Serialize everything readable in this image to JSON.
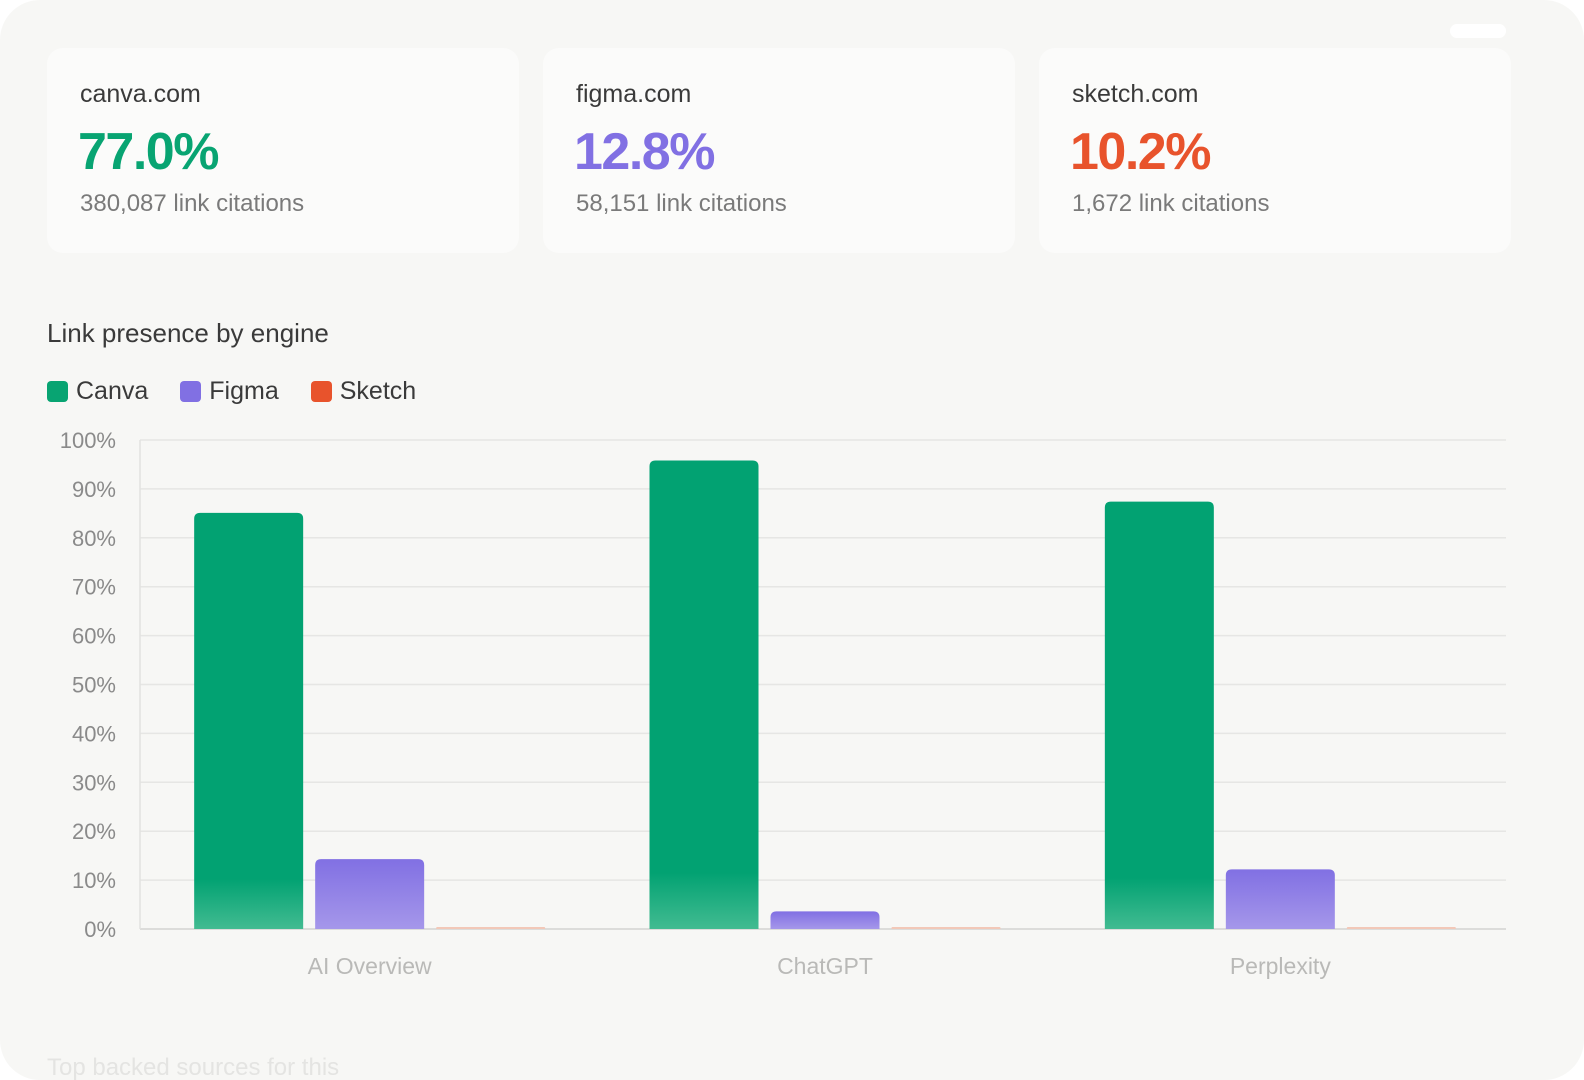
{
  "cards": [
    {
      "domain": "canva.com",
      "percent": "77.0%",
      "citations": "380,087 link citations",
      "color": "#08a472"
    },
    {
      "domain": "figma.com",
      "percent": "12.8%",
      "citations": "58,151 link citations",
      "color": "#8170e3"
    },
    {
      "domain": "sketch.com",
      "percent": "10.2%",
      "citations": "1,672 link citations",
      "color": "#e8532c"
    }
  ],
  "chart_title": "Link presence by engine",
  "legend": [
    {
      "label": "Canva",
      "color": "#08a472"
    },
    {
      "label": "Figma",
      "color": "#8170e3"
    },
    {
      "label": "Sketch",
      "color": "#e8532c"
    }
  ],
  "faded_heading": "Top backed sources for this",
  "chart_data": {
    "type": "bar",
    "title": "Link presence by engine",
    "categories": [
      "AI Overview",
      "ChatGPT",
      "Perplexity"
    ],
    "series": [
      {
        "name": "Canva",
        "color": "#08a472",
        "values": [
          85.1,
          95.8,
          87.4
        ]
      },
      {
        "name": "Figma",
        "color": "#8170e3",
        "values": [
          14.3,
          3.6,
          12.2
        ]
      },
      {
        "name": "Sketch",
        "color": "#e8532c",
        "values": [
          0.4,
          0.4,
          0.2
        ]
      }
    ],
    "ylim": [
      0,
      100
    ],
    "yticks": [
      "0%",
      "10%",
      "20%",
      "30%",
      "40%",
      "50%",
      "60%",
      "70%",
      "80%",
      "90%",
      "100%"
    ],
    "xlabel": "",
    "ylabel": "",
    "grid": true,
    "legend_position": "top-left"
  }
}
